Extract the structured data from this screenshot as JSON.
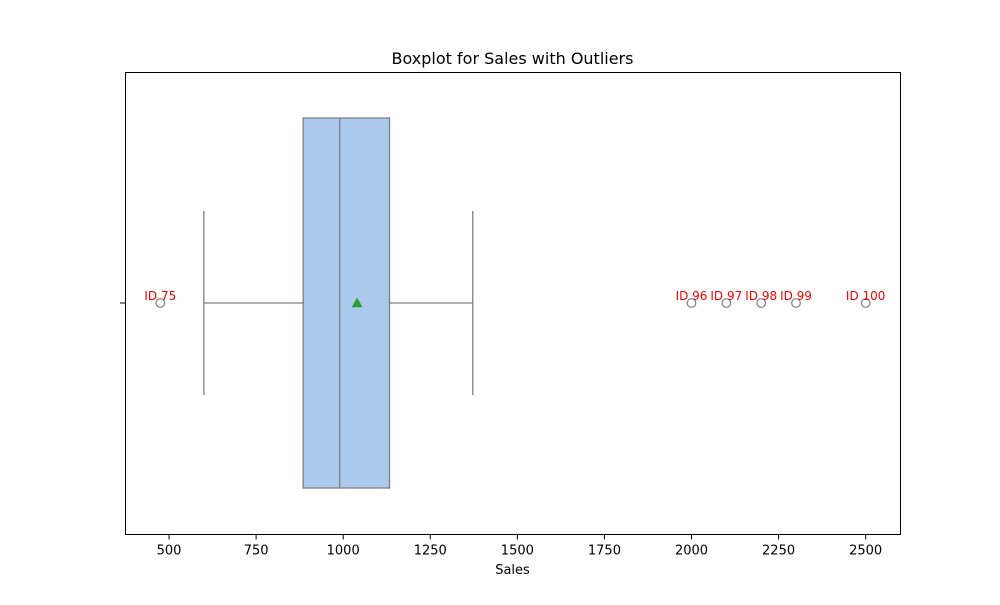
{
  "chart_data": {
    "type": "box",
    "title": "Boxplot for Sales with Outliers",
    "xlabel": "Sales",
    "ylabel": "",
    "xlim": [
      375,
      2600
    ],
    "xticks": [
      500,
      750,
      1000,
      1250,
      1500,
      1750,
      2000,
      2250,
      2500
    ],
    "grid": false,
    "box": {
      "whisker_low": 600,
      "q1": 885,
      "median": 990,
      "q3": 1133,
      "whisker_high": 1372,
      "mean": 1040
    },
    "outliers": [
      {
        "value": 475,
        "label": "ID 75"
      },
      {
        "value": 2000,
        "label": "ID 96"
      },
      {
        "value": 2100,
        "label": "ID 97"
      },
      {
        "value": 2200,
        "label": "ID 98"
      },
      {
        "value": 2300,
        "label": "ID 99"
      },
      {
        "value": 2500,
        "label": "ID 100"
      }
    ],
    "colors": {
      "box_fill": "#abc9ed",
      "box_edge": "#7f7f7f",
      "mean_marker": "#2ca02c",
      "outlier_label": "#ff0000",
      "axes": "#000000"
    }
  }
}
